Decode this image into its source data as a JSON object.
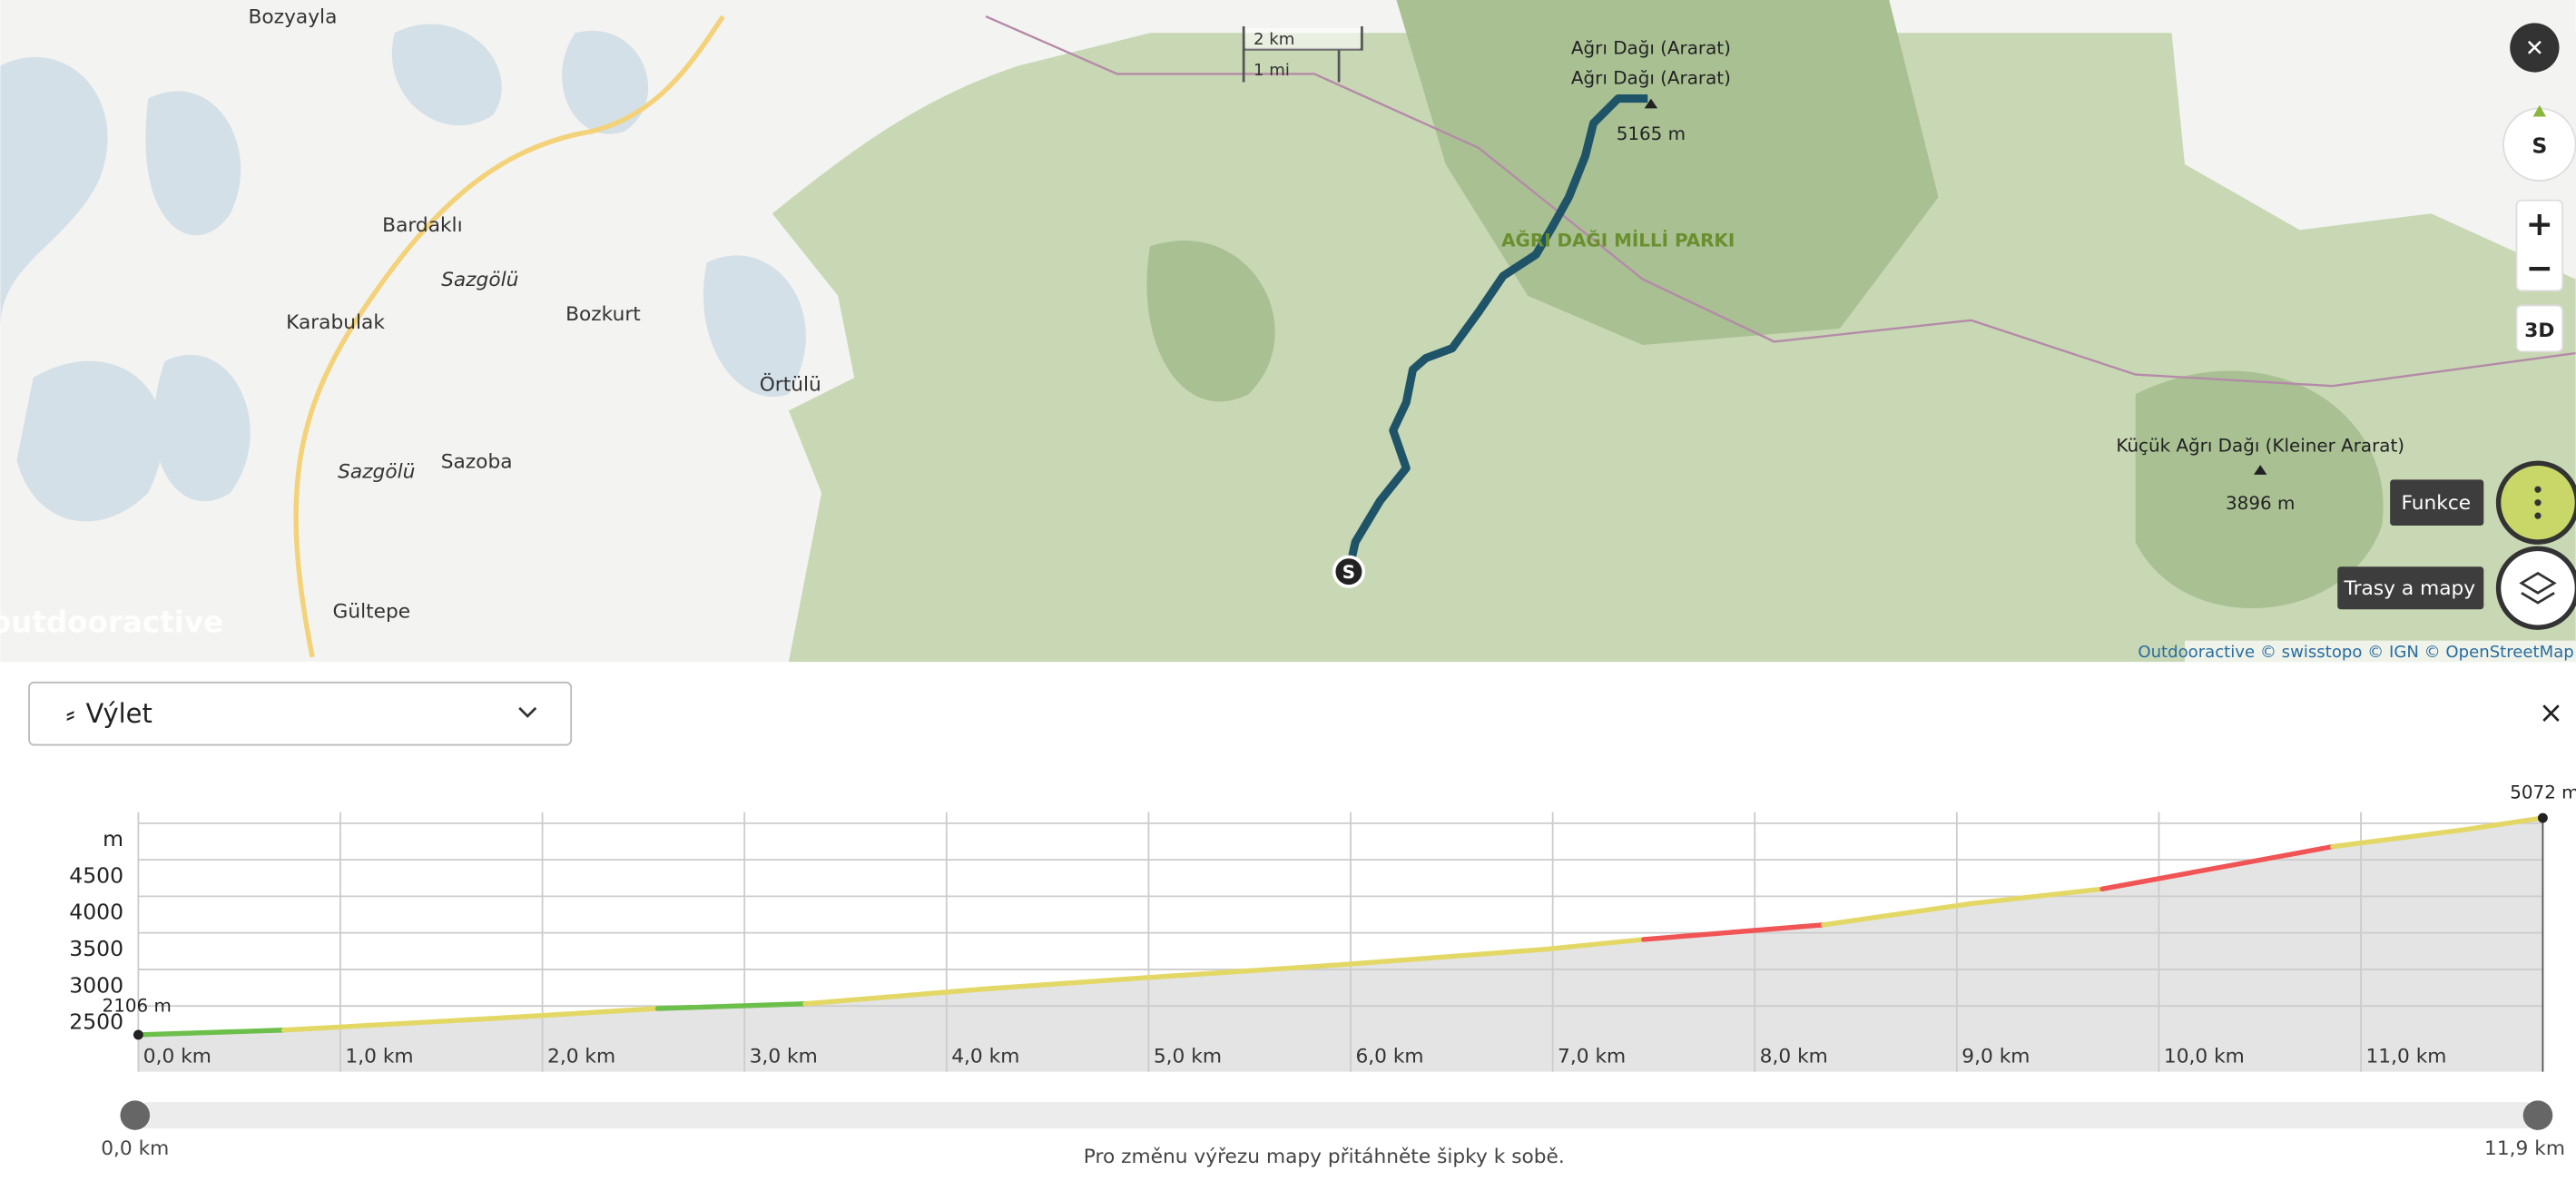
{
  "map": {
    "places": [
      "Bozyayla",
      "Bardaklı",
      "Sazgölü",
      "Karabulak",
      "Bozkurt",
      "Örtülü",
      "Sazgölü",
      "Sazoba",
      "Gültepe"
    ],
    "peak_main": "Ağrı Dağı (Ararat)",
    "peak_main_alt": "Ağrı Dağı (Ararat)",
    "peak_main_height": "5165 m",
    "park": "AĞRI DAĞI MİLLİ PARKI",
    "peak_small": "Küçük Ağrı Dağı (Kleiner Ararat)",
    "peak_small_height": "3896 m",
    "watermark": "outdooractive",
    "scale_km": "2 km",
    "scale_mi": "1 mi",
    "attribution": "Outdooractive © swisstopo © IGN © OpenStreetMap",
    "start_marker": "S",
    "compass": "S",
    "zoom_in": "+",
    "zoom_out": "−",
    "mode_3d": "3D",
    "close": "✕",
    "functions": "Funkce",
    "routes_maps": "Trasy a mapy"
  },
  "panel": {
    "dropdown": "Výlet",
    "close": "×",
    "slider_start": "0,0 km",
    "slider_end": "11,9 km",
    "hint": "Pro změnu výřezu mapy přitáhněte šipky k sobě."
  },
  "elevation_chart": {
    "type": "area",
    "x": [
      0,
      0.72,
      1.76,
      2.57,
      3.3,
      4.2,
      5.0,
      5.98,
      6.96,
      7.45,
      8.34,
      9.07,
      9.72,
      10.29,
      10.86,
      11.51,
      11.9
    ],
    "values": [
      2106,
      2170,
      2330,
      2465,
      2530,
      2735,
      2890,
      3070,
      3275,
      3410,
      3610,
      3900,
      4100,
      4390,
      4680,
      4910,
      5072
    ],
    "segment_colors": [
      "#6cbf4a",
      "#e3d866",
      "#e3d866",
      "#6cbf4a",
      "#e3d866",
      "#e3d866",
      "#e3d866",
      "#e3d866",
      "#e3d866",
      "#f05454",
      "#e3d866",
      "#e3d866",
      "#f05454",
      "#f05454",
      "#e3d866",
      "#e3d866"
    ],
    "annotations": [
      "2106 m",
      "5072 m"
    ],
    "xlim": [
      0,
      11.9
    ],
    "ylim": [
      1600,
      5150
    ],
    "xticks": [
      {
        "value": 0,
        "label": "0,0 km"
      },
      {
        "value": 1,
        "label": "1,0 km"
      },
      {
        "value": 2,
        "label": "2,0 km"
      },
      {
        "value": 3,
        "label": "3,0 km"
      },
      {
        "value": 4,
        "label": "4,0 km"
      },
      {
        "value": 5,
        "label": "5,0 km"
      },
      {
        "value": 6,
        "label": "6,0 km"
      },
      {
        "value": 7,
        "label": "7,0 km"
      },
      {
        "value": 8,
        "label": "8,0 km"
      },
      {
        "value": 9,
        "label": "9,0 km"
      },
      {
        "value": 10,
        "label": "10,0 km"
      },
      {
        "value": 11,
        "label": "11,0 km"
      }
    ],
    "yticks": [
      2500,
      3000,
      3500,
      4000,
      {
        "value": 5000,
        "label": "m"
      },
      4500
    ],
    "grid": true
  }
}
